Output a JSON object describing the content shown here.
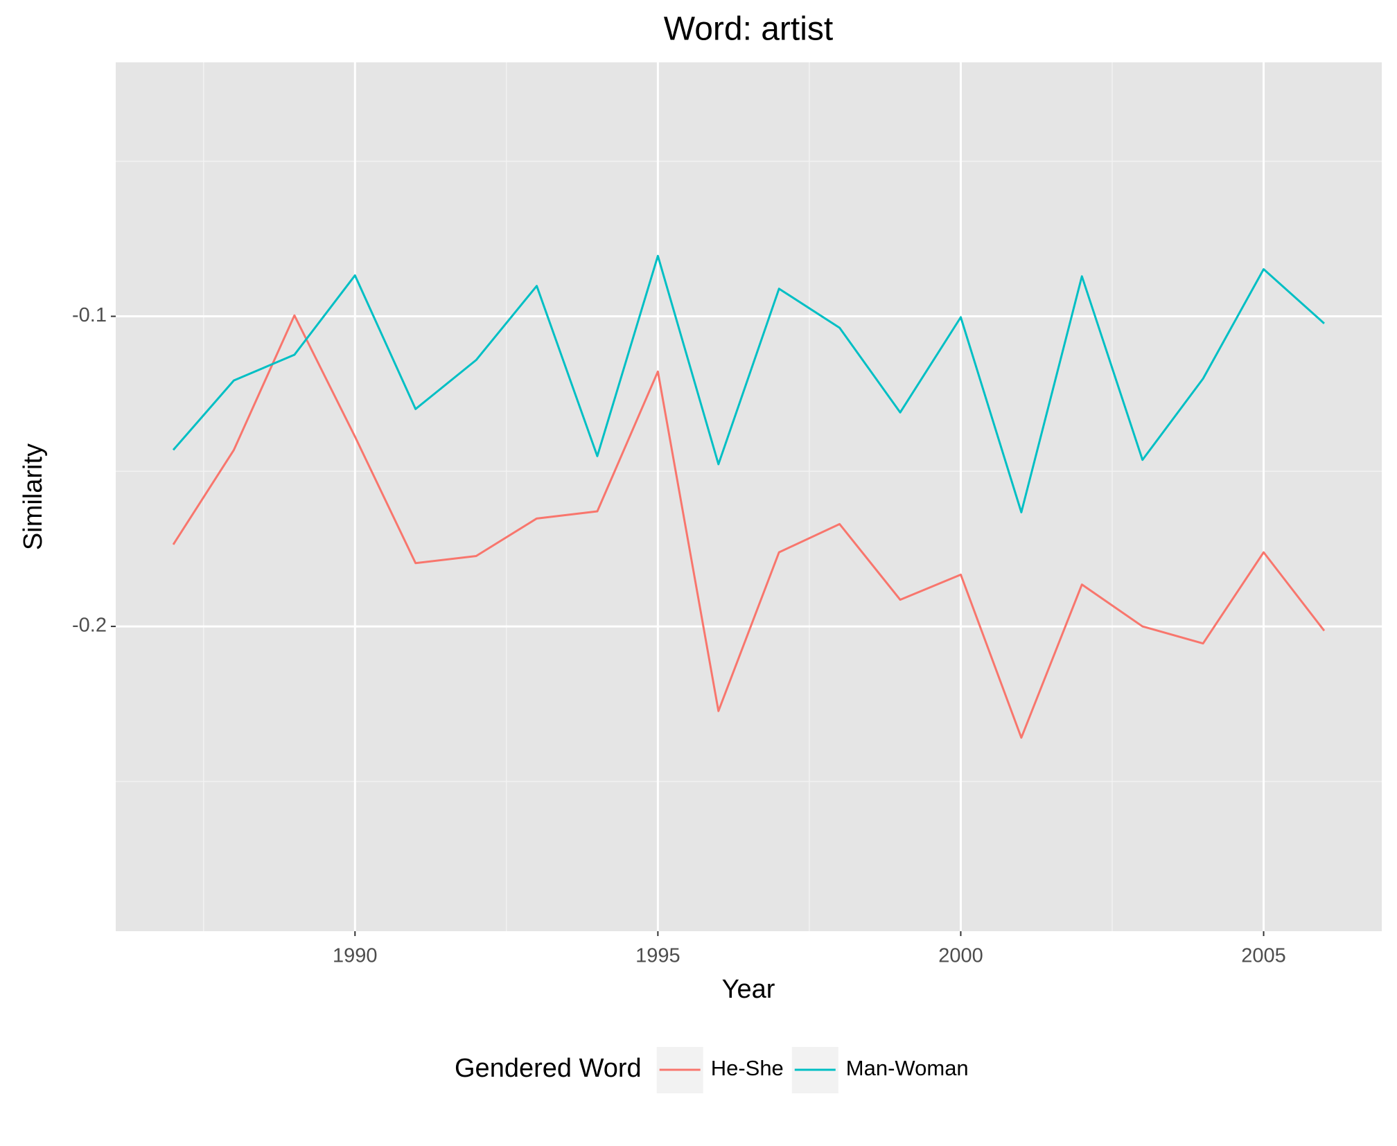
{
  "chart_data": {
    "type": "line",
    "title": "Word: artist",
    "x_label": "Year",
    "y_label": "Similarity",
    "x": [
      1987,
      1988,
      1989,
      1990,
      1991,
      1992,
      1993,
      1994,
      1995,
      1996,
      1997,
      1998,
      1999,
      2000,
      2001,
      2002,
      2003,
      2004,
      2005,
      2006
    ],
    "series": [
      {
        "name": "He-She",
        "color": "#F8766D",
        "values": [
          -0.1736,
          -0.1431,
          -0.0997,
          -0.1388,
          -0.1796,
          -0.1773,
          -0.1652,
          -0.1629,
          -0.1178,
          -0.2273,
          -0.1761,
          -0.167,
          -0.1914,
          -0.1833,
          -0.2359,
          -0.1865,
          -0.2,
          -0.2055,
          -0.1761,
          -0.2014
        ]
      },
      {
        "name": "Man-Woman",
        "color": "#00BFC4",
        "values": [
          -0.1431,
          -0.1207,
          -0.1124,
          -0.0868,
          -0.1299,
          -0.1141,
          -0.0902,
          -0.1451,
          -0.0805,
          -0.1477,
          -0.0911,
          -0.1037,
          -0.131,
          -0.1003,
          -0.1632,
          -0.0871,
          -0.1463,
          -0.1201,
          -0.0848,
          -0.1023
        ]
      }
    ],
    "xlim": [
      1986.05,
      2006.95
    ],
    "xticks": [
      1990,
      1995,
      2000,
      2005
    ],
    "xminor": [
      1987.5,
      1992.5,
      1997.5,
      2002.5
    ],
    "ylim": [
      -0.2983,
      -0.0181
    ],
    "yticks": [
      -0.2,
      -0.1
    ],
    "yminor": [
      -0.25,
      -0.15,
      -0.05
    ],
    "grid": true,
    "legend_title": "Gendered Word",
    "legend_position": "bottom"
  }
}
